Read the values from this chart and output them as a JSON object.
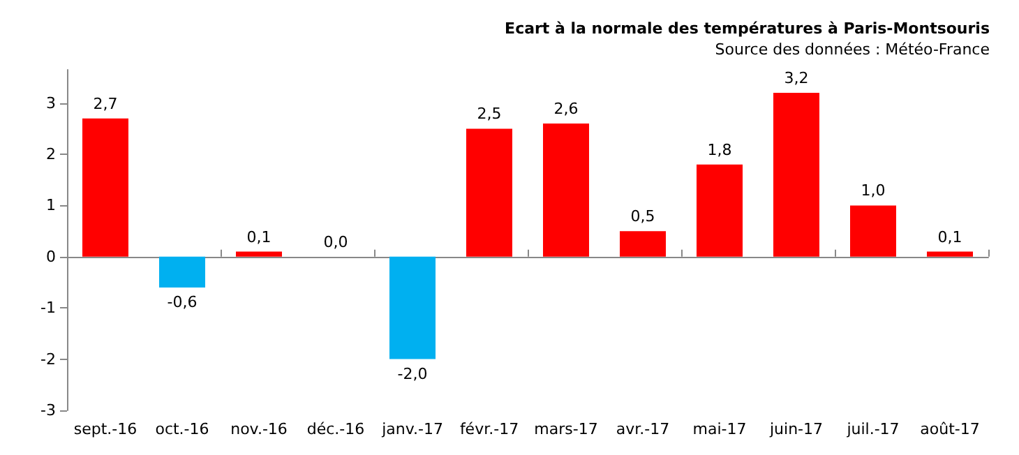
{
  "chart_data": {
    "type": "bar",
    "title": "Ecart à la normale des températures à Paris-Montsouris",
    "subtitle": "Source des données : Météo-France",
    "categories": [
      "sept.-16",
      "oct.-16",
      "nov.-16",
      "déc.-16",
      "janv.-17",
      "févr.-17",
      "mars-17",
      "avr.-17",
      "mai-17",
      "juin-17",
      "juil.-17",
      "août-17"
    ],
    "values": [
      2.7,
      -0.6,
      0.1,
      0.0,
      -2.0,
      2.5,
      2.6,
      0.5,
      1.8,
      3.2,
      1.0,
      0.1
    ],
    "colors": [
      "#ff0000",
      "#00b0f0",
      "#ff0000",
      "#00b0f0",
      "#00b0f0",
      "#ff0000",
      "#ff0000",
      "#ff0000",
      "#ff0000",
      "#ff0000",
      "#ff0000",
      "#ff0000"
    ],
    "value_labels": [
      "2,7",
      "-0,6",
      "0,1",
      "0,0",
      "-2,0",
      "2,5",
      "2,6",
      "0,5",
      "1,8",
      "3,2",
      "1,0",
      "0,1"
    ],
    "ylim": [
      -3,
      3.65
    ],
    "yticks": [
      -3,
      -2,
      -1,
      0,
      1,
      2,
      3
    ]
  }
}
